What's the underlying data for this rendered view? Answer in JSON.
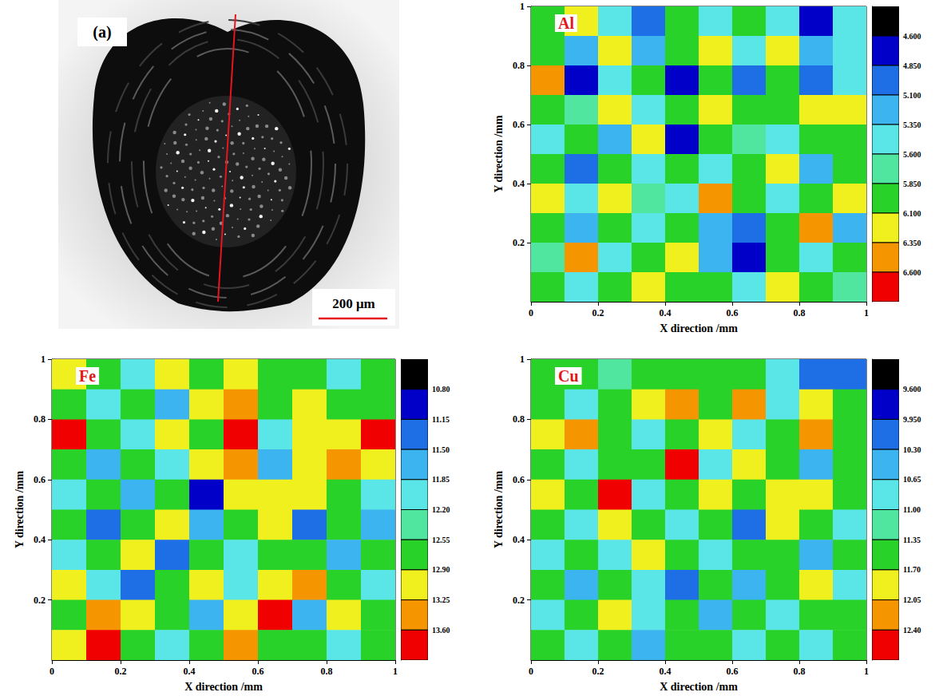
{
  "panel_a": {
    "label": "(a)",
    "scale_bar": "200 μm"
  },
  "chart_data": [
    {
      "type": "heatmap",
      "title": "Al",
      "x_label": "X direction /mm",
      "y_label": "Y direction /mm",
      "x": [
        0.05,
        0.15,
        0.25,
        0.35,
        0.45,
        0.55,
        0.65,
        0.75,
        0.85,
        0.95
      ],
      "y": [
        0.95,
        0.85,
        0.75,
        0.65,
        0.55,
        0.45,
        0.35,
        0.25,
        0.15,
        0.05
      ],
      "z": [
        [
          5.98,
          6.22,
          5.48,
          4.98,
          5.98,
          5.48,
          5.98,
          5.48,
          4.72,
          5.48
        ],
        [
          5.98,
          5.22,
          6.22,
          5.22,
          5.98,
          6.22,
          5.48,
          6.22,
          5.22,
          5.48
        ],
        [
          6.48,
          4.72,
          5.48,
          5.98,
          4.72,
          5.98,
          4.98,
          5.98,
          4.98,
          5.48
        ],
        [
          5.98,
          5.72,
          6.22,
          5.48,
          5.98,
          6.22,
          5.98,
          5.98,
          6.22,
          6.22
        ],
        [
          5.48,
          5.98,
          5.22,
          6.22,
          4.72,
          5.98,
          5.72,
          5.48,
          5.98,
          5.98
        ],
        [
          5.98,
          4.98,
          5.98,
          5.48,
          5.98,
          5.48,
          5.98,
          6.22,
          5.22,
          5.98
        ],
        [
          6.22,
          5.48,
          6.22,
          5.72,
          5.48,
          6.48,
          5.98,
          5.48,
          5.98,
          6.22
        ],
        [
          5.98,
          5.22,
          5.98,
          5.48,
          5.98,
          5.22,
          4.98,
          5.98,
          6.48,
          5.22
        ],
        [
          5.72,
          6.48,
          5.48,
          5.98,
          6.22,
          5.22,
          4.72,
          5.98,
          5.48,
          5.98
        ],
        [
          5.98,
          5.48,
          5.98,
          6.22,
          5.98,
          5.98,
          5.48,
          6.22,
          5.98,
          5.72
        ]
      ],
      "xlim": [
        0,
        1
      ],
      "ylim": [
        0,
        1
      ],
      "xticks": [
        0,
        0.2,
        0.4,
        0.6,
        0.8,
        1
      ],
      "yticks": [
        0.2,
        0.4,
        0.6,
        0.8,
        1
      ],
      "colorbar": {
        "lim": [
          4.35,
          6.85
        ],
        "ticks": [
          {
            "value": 4.6,
            "label": "4.600"
          },
          {
            "value": 4.85,
            "label": "4.850"
          },
          {
            "value": 5.1,
            "label": "5.100"
          },
          {
            "value": 5.35,
            "label": "5.350"
          },
          {
            "value": 5.6,
            "label": "5.600"
          },
          {
            "value": 5.85,
            "label": "5.850"
          },
          {
            "value": 6.1,
            "label": "6.100"
          },
          {
            "value": 6.35,
            "label": "6.350"
          },
          {
            "value": 6.6,
            "label": "6.600"
          }
        ],
        "colors": [
          "#000000",
          "#0000c8",
          "#1e6ee6",
          "#3cb4f0",
          "#5ae6e6",
          "#50e6a0",
          "#28d228",
          "#f0f01e",
          "#f59600",
          "#f00000"
        ]
      }
    },
    {
      "type": "heatmap",
      "title": "Fe",
      "x_label": "X direction /mm",
      "y_label": "Y direction /mm",
      "x": [
        0.05,
        0.15,
        0.25,
        0.35,
        0.45,
        0.55,
        0.65,
        0.75,
        0.85,
        0.95
      ],
      "y": [
        0.95,
        0.85,
        0.75,
        0.65,
        0.55,
        0.45,
        0.35,
        0.25,
        0.15,
        0.05
      ],
      "z": [
        [
          13.08,
          12.73,
          12.03,
          13.08,
          12.73,
          13.08,
          12.73,
          12.73,
          12.03,
          12.73
        ],
        [
          12.73,
          12.03,
          12.73,
          11.68,
          13.08,
          13.43,
          12.73,
          13.08,
          12.73,
          12.73
        ],
        [
          13.75,
          12.73,
          12.03,
          13.08,
          12.73,
          13.75,
          12.03,
          13.08,
          13.08,
          13.75
        ],
        [
          12.73,
          11.68,
          12.73,
          12.03,
          13.08,
          13.43,
          11.68,
          13.08,
          13.43,
          13.08
        ],
        [
          12.03,
          12.73,
          11.68,
          12.73,
          10.98,
          13.08,
          13.08,
          13.08,
          12.73,
          12.03
        ],
        [
          12.73,
          11.33,
          12.73,
          13.08,
          11.68,
          12.73,
          13.08,
          11.33,
          12.73,
          11.68
        ],
        [
          12.03,
          12.73,
          13.08,
          11.33,
          12.73,
          12.03,
          12.73,
          12.73,
          11.68,
          12.73
        ],
        [
          13.08,
          12.03,
          11.33,
          12.73,
          13.08,
          12.03,
          13.08,
          13.43,
          12.73,
          12.03
        ],
        [
          12.73,
          13.43,
          13.08,
          12.73,
          11.68,
          13.08,
          13.75,
          11.68,
          13.08,
          12.73
        ],
        [
          13.08,
          13.75,
          12.73,
          12.03,
          12.73,
          13.43,
          12.73,
          12.73,
          12.03,
          12.73
        ]
      ],
      "xlim": [
        0,
        1
      ],
      "ylim": [
        0,
        1
      ],
      "xticks": [
        0,
        0.2,
        0.4,
        0.6,
        0.8,
        1
      ],
      "yticks": [
        0.2,
        0.4,
        0.6,
        0.8,
        1
      ],
      "colorbar": {
        "lim": [
          10.45,
          13.95
        ],
        "ticks": [
          {
            "value": 10.8,
            "label": "10.80"
          },
          11.15,
          {
            "value": 11.5,
            "label": "11.50"
          },
          11.85,
          {
            "value": 12.2,
            "label": "12.20"
          },
          12.55,
          {
            "value": 12.9,
            "label": "12.90"
          },
          13.25,
          {
            "value": 13.6,
            "label": "13.60"
          }
        ],
        "colors": [
          "#000000",
          "#0000c8",
          "#1e6ee6",
          "#3cb4f0",
          "#5ae6e6",
          "#50e6a0",
          "#28d228",
          "#f0f01e",
          "#f59600",
          "#f00000"
        ]
      }
    },
    {
      "type": "heatmap",
      "title": "Cu",
      "x_label": "X direction /mm",
      "y_label": "Y direction /mm",
      "x": [
        0.05,
        0.15,
        0.25,
        0.35,
        0.45,
        0.55,
        0.65,
        0.75,
        0.85,
        0.95
      ],
      "y": [
        0.95,
        0.85,
        0.75,
        0.65,
        0.55,
        0.45,
        0.35,
        0.25,
        0.15,
        0.05
      ],
      "z": [
        [
          11.53,
          11.53,
          11.18,
          11.53,
          11.53,
          11.53,
          11.53,
          10.83,
          10.13,
          10.13
        ],
        [
          11.53,
          10.83,
          11.53,
          11.88,
          12.23,
          11.53,
          12.23,
          10.83,
          11.88,
          11.53
        ],
        [
          11.88,
          12.23,
          11.53,
          10.83,
          11.53,
          11.88,
          10.83,
          11.53,
          12.23,
          11.53
        ],
        [
          11.53,
          10.83,
          11.53,
          11.53,
          12.55,
          10.83,
          11.88,
          11.53,
          10.48,
          11.53
        ],
        [
          11.88,
          11.53,
          12.55,
          10.83,
          11.53,
          11.88,
          11.53,
          11.88,
          11.88,
          11.53
        ],
        [
          11.53,
          10.83,
          11.88,
          11.53,
          10.83,
          11.53,
          10.13,
          11.88,
          11.53,
          10.83
        ],
        [
          10.83,
          11.53,
          10.83,
          11.88,
          11.53,
          10.83,
          11.53,
          11.53,
          10.48,
          11.53
        ],
        [
          11.53,
          10.48,
          11.53,
          10.83,
          10.13,
          11.53,
          10.48,
          11.53,
          11.88,
          10.83
        ],
        [
          10.83,
          11.53,
          11.88,
          10.83,
          11.53,
          10.48,
          11.53,
          10.83,
          11.53,
          11.53
        ],
        [
          11.53,
          10.83,
          11.53,
          10.48,
          11.53,
          11.53,
          10.83,
          11.53,
          10.83,
          11.53
        ]
      ],
      "xlim": [
        0,
        1
      ],
      "ylim": [
        0,
        1
      ],
      "xticks": [
        0,
        0.2,
        0.4,
        0.6,
        0.8,
        1
      ],
      "yticks": [
        0.2,
        0.4,
        0.6,
        0.8,
        1
      ],
      "colorbar": {
        "lim": [
          9.25,
          12.75
        ],
        "ticks": [
          {
            "value": 9.6,
            "label": "9.600"
          },
          {
            "value": 9.95,
            "label": "9.950"
          },
          {
            "value": 10.3,
            "label": "10.30"
          },
          10.65,
          {
            "value": 11,
            "label": "11.00"
          },
          11.35,
          {
            "value": 11.7,
            "label": "11.70"
          },
          12.05,
          {
            "value": 12.4,
            "label": "12.40"
          }
        ],
        "colors": [
          "#000000",
          "#0000c8",
          "#1e6ee6",
          "#3cb4f0",
          "#5ae6e6",
          "#50e6a0",
          "#28d228",
          "#f0f01e",
          "#f59600",
          "#f00000"
        ]
      }
    }
  ]
}
